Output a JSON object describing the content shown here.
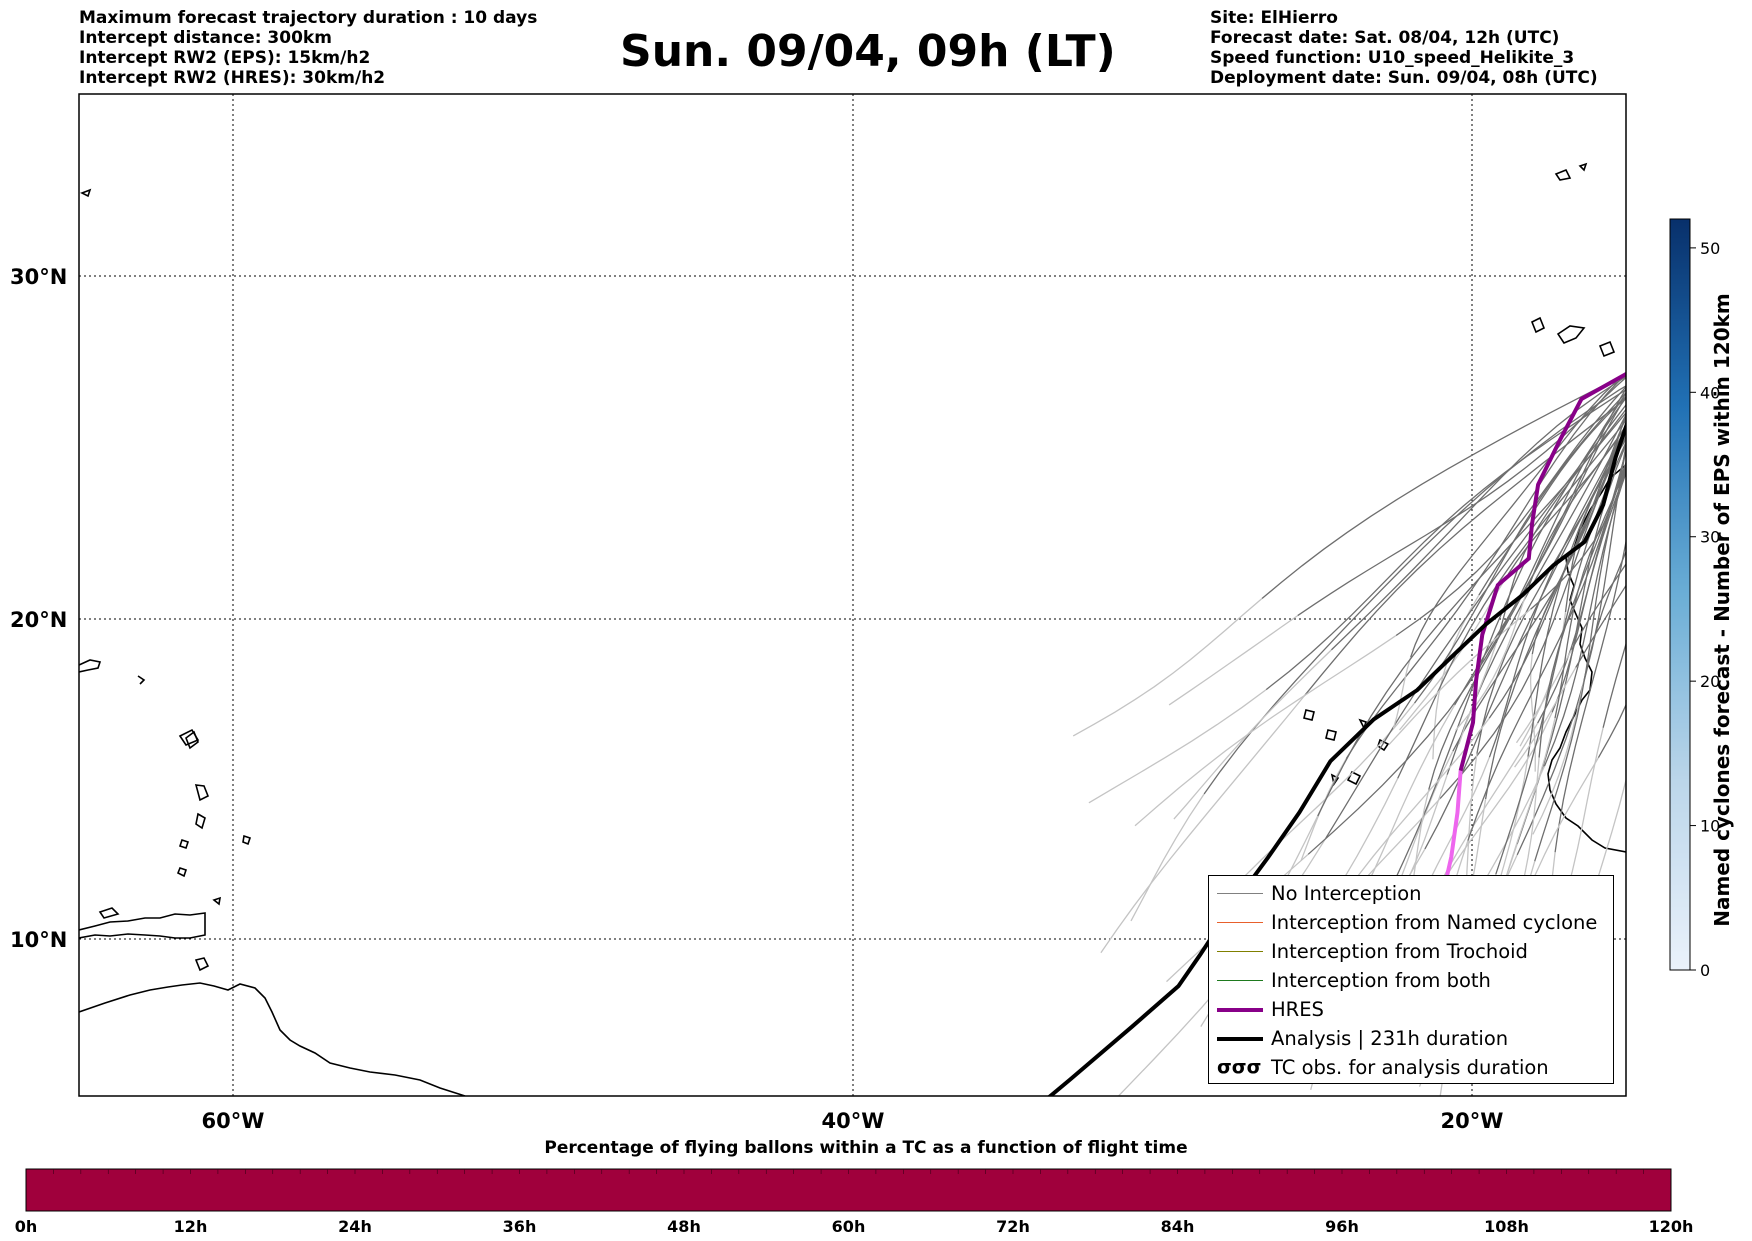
{
  "header": {
    "left_lines": [
      "Maximum forecast trajectory duration : 10 days",
      "Intercept distance: 300km",
      "Intercept RW2 (EPS):  15km/h2",
      "Intercept RW2 (HRES): 30km/h2"
    ],
    "title": "Sun. 09/04, 09h (LT)",
    "right_lines": [
      "Site: ElHierro",
      "Forecast date: Sat. 08/04, 12h (UTC)",
      "Speed function: U10_speed_Helikite_3",
      "Deployment date: Sun. 09/04, 08h (UTC)"
    ]
  },
  "map": {
    "lon_range": [
      -65,
      -15
    ],
    "lat_range": [
      4.5,
      34
    ],
    "lat_labels": [
      "30°N",
      "20°N",
      "10°N"
    ],
    "lon_labels": [
      "60°W",
      "40°W",
      "20°W"
    ],
    "analysis_path": [
      [
        -34.2,
        4.5
      ],
      [
        -33,
        5.5
      ],
      [
        -31,
        7.2
      ],
      [
        -29.5,
        8.5
      ],
      [
        -28.8,
        9.5
      ],
      [
        -27.8,
        11
      ],
      [
        -26.6,
        12.6
      ],
      [
        -25.6,
        14
      ],
      [
        -24.6,
        15.6
      ],
      [
        -23.2,
        16.9
      ],
      [
        -21.8,
        17.8
      ],
      [
        -20.6,
        18.9
      ],
      [
        -19.6,
        19.8
      ],
      [
        -18.4,
        20.7
      ],
      [
        -17.4,
        21.6
      ],
      [
        -16.4,
        22.3
      ],
      [
        -15.8,
        23.4
      ],
      [
        -15.4,
        24.8
      ],
      [
        -14.8,
        26.4
      ],
      [
        -14.0,
        27.6
      ]
    ],
    "hres_path": [
      [
        -20.9,
        10.3
      ],
      [
        -21.0,
        11.3
      ],
      [
        -20.7,
        12.6
      ],
      [
        -20.5,
        14.0
      ],
      [
        -20.4,
        15.3
      ],
      [
        -20.0,
        16.8
      ],
      [
        -19.9,
        18.1
      ],
      [
        -19.7,
        19.5
      ],
      [
        -19.2,
        21.0
      ],
      [
        -18.2,
        21.8
      ],
      [
        -18.1,
        22.8
      ],
      [
        -17.9,
        24.0
      ],
      [
        -17.2,
        25.3
      ],
      [
        -16.5,
        26.5
      ],
      [
        -14.3,
        27.6
      ]
    ],
    "hres_change_lat": 14.8
  },
  "colorbar_vertical": {
    "label": "Named cyclones forecast - Number of EPS within 120km",
    "ticks": [
      "0",
      "10",
      "20",
      "30",
      "40",
      "50"
    ],
    "max": 52,
    "colors": [
      "#eaf2fb",
      "#08306b"
    ]
  },
  "colorbar_horizontal": {
    "title": "Percentage of flying ballons within a TC as a function of flight time",
    "ticks": [
      "0h",
      "12h",
      "24h",
      "36h",
      "48h",
      "60h",
      "72h",
      "84h",
      "96h",
      "108h",
      "120h"
    ],
    "fill_color": "#a0003c"
  },
  "legend": {
    "items": [
      {
        "label": "No Interception",
        "color": "#808080",
        "width": 1.3
      },
      {
        "label": "Interception from Named cyclone",
        "color": "#e8602c",
        "width": 1.3
      },
      {
        "label": "Interception from Trochoid",
        "color": "#808000",
        "width": 1.3
      },
      {
        "label": "Interception from both",
        "color": "#1e7a1e",
        "width": 1.3
      },
      {
        "label": "HRES",
        "color": "#880088",
        "width": 4
      },
      {
        "label": "Analysis | 231h duration",
        "color": "#000000",
        "width": 4
      },
      {
        "label": "TC obs. for analysis duration",
        "color": "#000000",
        "width": 0,
        "icon": "tc-symbol-icon"
      }
    ]
  }
}
